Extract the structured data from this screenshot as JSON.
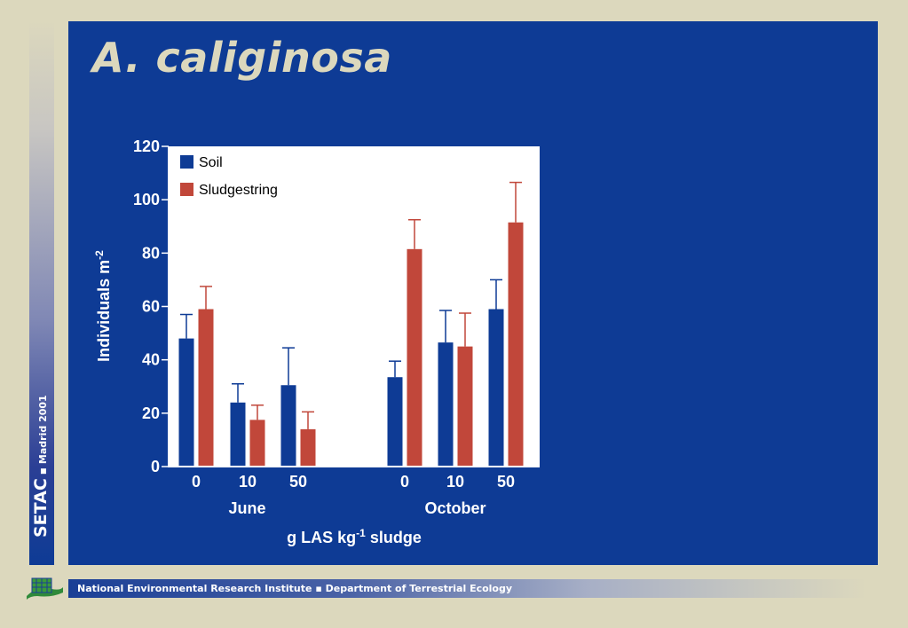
{
  "slide": {
    "title": "A. caliginosa",
    "sidebar_main": "SETAC",
    "sidebar_sep": "▪",
    "sidebar_sub": "Madrid 2001",
    "footer_left": "National Environmental Research Institute",
    "footer_sep": "▪",
    "footer_right": "Department of Terrestrial Ecology"
  },
  "chart_data": {
    "type": "bar",
    "title": "",
    "ylabel": "Individuals m",
    "ylabel_sup": "-2",
    "xlabel_parts": [
      "g LAS kg",
      "-1",
      " sludge"
    ],
    "ylim": [
      0,
      120
    ],
    "yticks": [
      0,
      20,
      40,
      60,
      80,
      100,
      120
    ],
    "groups": [
      "June",
      "October"
    ],
    "categories": [
      "0",
      "10",
      "50",
      "0",
      "10",
      "50"
    ],
    "series": [
      {
        "name": "Soil",
        "color": "#0e3b95",
        "values": [
          48,
          24,
          30.5,
          33.5,
          46.5,
          59
        ],
        "errors": [
          9,
          7,
          14,
          6,
          12,
          11
        ]
      },
      {
        "name": "Sludgestring",
        "color": "#c1473a",
        "values": [
          59,
          17.5,
          14,
          81.5,
          45,
          91.5
        ],
        "errors": [
          8.5,
          5.5,
          6.5,
          11,
          12.5,
          15
        ]
      }
    ],
    "legend": "top-left",
    "grid": false
  }
}
